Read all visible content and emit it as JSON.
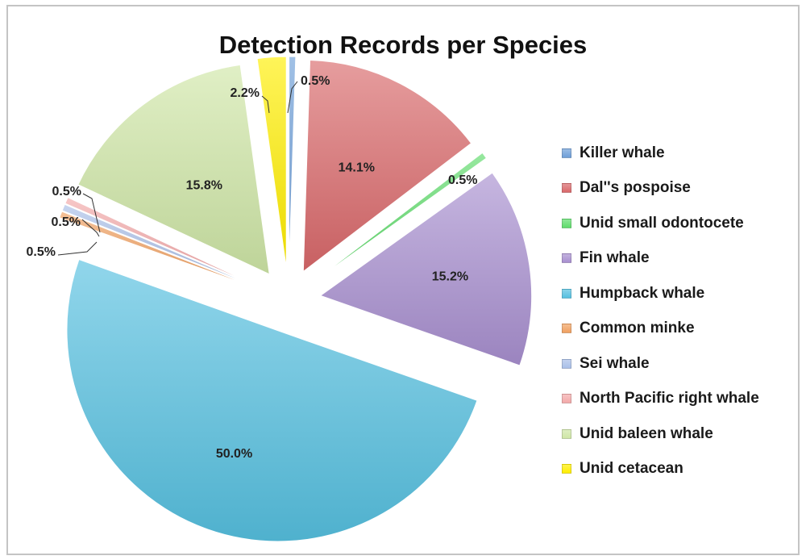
{
  "chart_data": {
    "type": "pie",
    "title": "Detection Records per Species",
    "categories": [
      "Killer whale",
      "Dal''s pospoise",
      "Unid small odontocete",
      "Fin whale",
      "Humpback whale",
      "Common minke",
      "Sei whale",
      "North Pacific right whale",
      "Unid baleen whale",
      "Unid cetacean"
    ],
    "values": [
      0.5,
      14.1,
      0.5,
      15.2,
      50.0,
      0.5,
      0.5,
      0.5,
      15.8,
      2.2
    ],
    "labels": [
      "0.5%",
      "14.1%",
      "0.5%",
      "15.2%",
      "50.0%",
      "0.5%",
      "0.5%",
      "0.5%",
      "15.8%",
      "2.2%"
    ],
    "colors": [
      "#6f9fd8",
      "#d9686a",
      "#5fdc6c",
      "#a88fd0",
      "#56c0e0",
      "#f0a060",
      "#a9bfe8",
      "#f3a9a9",
      "#cfe6a6",
      "#ffee00"
    ],
    "legend_position": "right",
    "exploded": true
  }
}
